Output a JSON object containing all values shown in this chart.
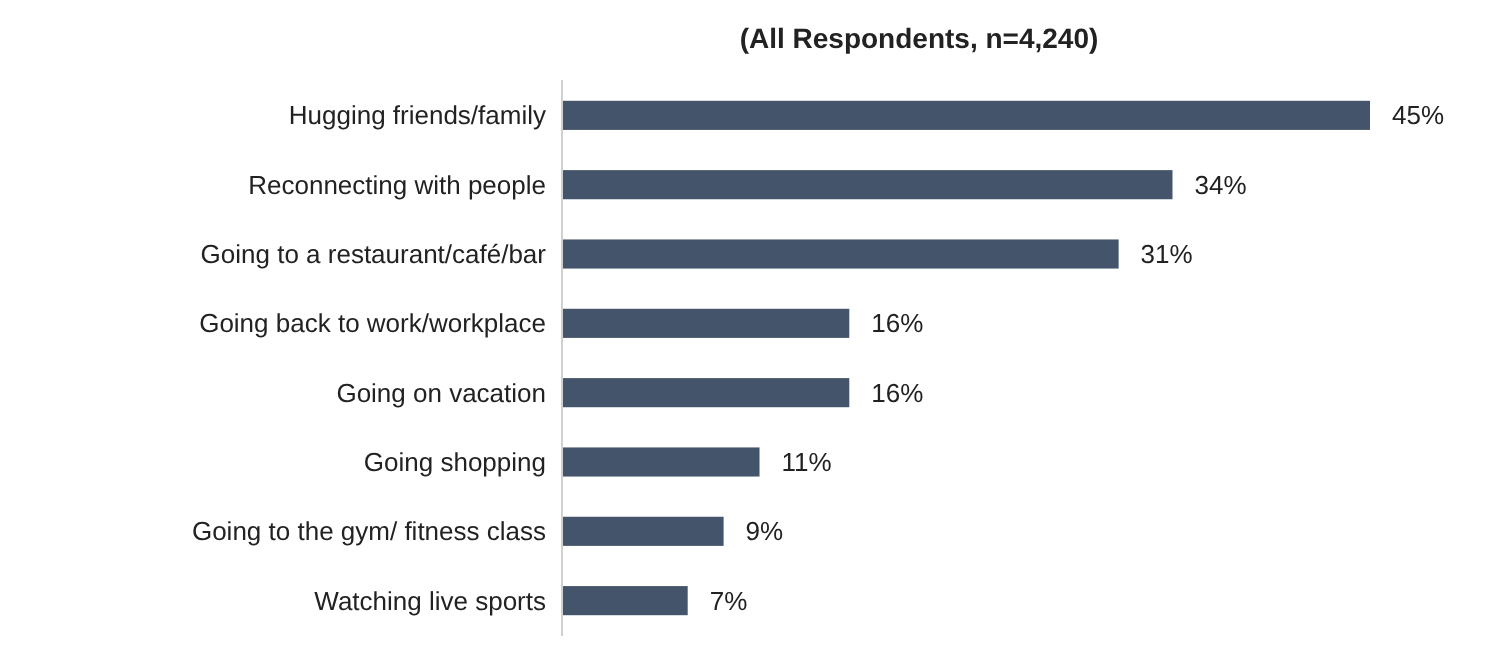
{
  "chart_data": {
    "type": "bar",
    "orientation": "horizontal",
    "subtitle": "(All Respondents, n=4,240)",
    "categories": [
      "Hugging friends/family",
      "Reconnecting with people",
      "Going to a restaurant/café/bar",
      "Going back to work/workplace",
      "Going on vacation",
      "Going shopping",
      "Going to the gym/ fitness class",
      "Watching live sports"
    ],
    "values": [
      45,
      34,
      31,
      16,
      16,
      11,
      9,
      7
    ],
    "value_labels": [
      "45%",
      "34%",
      "31%",
      "16%",
      "16%",
      "11%",
      "9%",
      "7%"
    ],
    "color": "#44546a"
  }
}
